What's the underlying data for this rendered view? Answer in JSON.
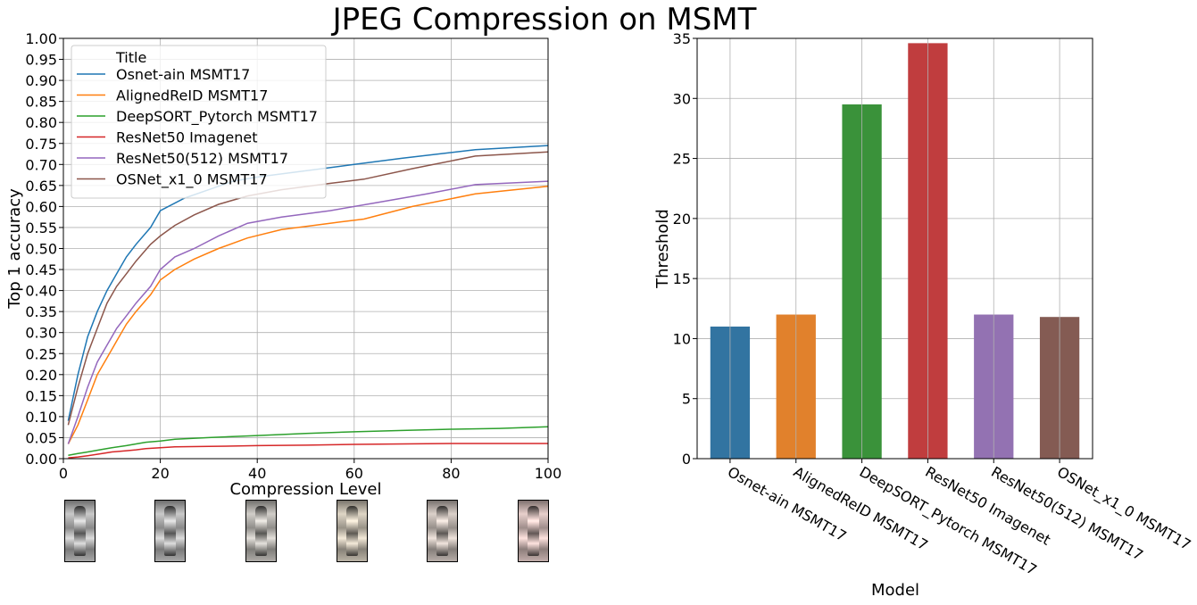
{
  "suptitle": "JPEG Compression on MSMT",
  "chart_data": [
    {
      "type": "line",
      "xlabel": "Compression Level",
      "ylabel": "Top 1 accuracy",
      "xlim": [
        0,
        100
      ],
      "ylim": [
        0,
        1.0
      ],
      "xticks": [
        "0",
        "20",
        "40",
        "60",
        "80",
        "100"
      ],
      "yticks": [
        "0.00",
        "0.05",
        "0.10",
        "0.15",
        "0.20",
        "0.25",
        "0.30",
        "0.35",
        "0.40",
        "0.45",
        "0.50",
        "0.55",
        "0.60",
        "0.65",
        "0.70",
        "0.75",
        "0.80",
        "0.85",
        "0.90",
        "0.95",
        "1.00"
      ],
      "grid": true,
      "legend": {
        "title": "Title",
        "placement": "top-left"
      },
      "series": [
        {
          "name": "Osnet-ain MSMT17",
          "color": "#1f77b4",
          "x": [
            1,
            3,
            5,
            7,
            9,
            11,
            13,
            15,
            18,
            20,
            25,
            30,
            35,
            40,
            50,
            60,
            70,
            85,
            100
          ],
          "y": [
            0.09,
            0.2,
            0.29,
            0.35,
            0.4,
            0.44,
            0.48,
            0.51,
            0.55,
            0.59,
            0.62,
            0.64,
            0.66,
            0.67,
            0.685,
            0.7,
            0.715,
            0.735,
            0.745
          ]
        },
        {
          "name": "AlignedReID MSMT17",
          "color": "#ff7f0e",
          "x": [
            1,
            3,
            5,
            7,
            9,
            11,
            13,
            15,
            18,
            20,
            23,
            27,
            32,
            38,
            45,
            55,
            62,
            72,
            85,
            100
          ],
          "y": [
            0.035,
            0.08,
            0.14,
            0.2,
            0.24,
            0.28,
            0.32,
            0.35,
            0.39,
            0.425,
            0.45,
            0.475,
            0.5,
            0.525,
            0.545,
            0.56,
            0.57,
            0.6,
            0.63,
            0.648
          ]
        },
        {
          "name": "DeepSORT_Pytorch MSMT17",
          "color": "#2ca02c",
          "x": [
            1,
            3,
            5,
            8,
            10,
            13,
            15,
            17,
            20,
            23,
            30,
            40,
            50,
            60,
            70,
            80,
            90,
            100
          ],
          "y": [
            0.008,
            0.012,
            0.016,
            0.022,
            0.026,
            0.031,
            0.035,
            0.039,
            0.042,
            0.046,
            0.05,
            0.055,
            0.06,
            0.064,
            0.067,
            0.07,
            0.072,
            0.076
          ]
        },
        {
          "name": "ResNet50 Imagenet",
          "color": "#d62728",
          "x": [
            1,
            3,
            5,
            8,
            10,
            13,
            15,
            17,
            20,
            23,
            30,
            40,
            50,
            60,
            70,
            80,
            90,
            100
          ],
          "y": [
            0.002,
            0.004,
            0.007,
            0.012,
            0.016,
            0.019,
            0.021,
            0.024,
            0.026,
            0.028,
            0.029,
            0.031,
            0.032,
            0.034,
            0.035,
            0.036,
            0.036,
            0.036
          ]
        },
        {
          "name": "ResNet50(512) MSMT17",
          "color": "#9467bd",
          "x": [
            1,
            3,
            5,
            7,
            9,
            11,
            13,
            15,
            18,
            20,
            23,
            27,
            32,
            38,
            45,
            55,
            65,
            75,
            85,
            100
          ],
          "y": [
            0.035,
            0.1,
            0.17,
            0.23,
            0.27,
            0.31,
            0.34,
            0.37,
            0.41,
            0.45,
            0.48,
            0.5,
            0.53,
            0.56,
            0.575,
            0.59,
            0.61,
            0.63,
            0.652,
            0.66
          ]
        },
        {
          "name": "OSNet_x1_0 MSMT17",
          "color": "#8c564b",
          "x": [
            1,
            3,
            5,
            7,
            9,
            11,
            13,
            15,
            18,
            20,
            23,
            27,
            32,
            38,
            45,
            55,
            62,
            72,
            85,
            100
          ],
          "y": [
            0.08,
            0.17,
            0.25,
            0.31,
            0.37,
            0.41,
            0.44,
            0.47,
            0.51,
            0.53,
            0.555,
            0.58,
            0.605,
            0.625,
            0.64,
            0.655,
            0.665,
            0.69,
            0.72,
            0.73
          ]
        }
      ]
    },
    {
      "type": "bar",
      "xlabel": "Model",
      "ylabel": "Threshold",
      "ylim": [
        0,
        35
      ],
      "yticks": [
        "0",
        "5",
        "10",
        "15",
        "20",
        "25",
        "30",
        "35"
      ],
      "grid": true,
      "categories": [
        "Osnet-ain MSMT17",
        "AlignedReID MSMT17",
        "DeepSORT_Pytorch MSMT17",
        "ResNet50 Imagenet",
        "ResNet50(512) MSMT17",
        "OSNet_x1_0 MSMT17"
      ],
      "values": [
        11.0,
        12.0,
        29.5,
        34.6,
        12.0,
        11.8
      ],
      "colors": [
        "#3274a1",
        "#e1812c",
        "#3a923a",
        "#c03d3e",
        "#9372b2",
        "#845b53"
      ]
    }
  ],
  "thumbnails": {
    "count": 6
  }
}
